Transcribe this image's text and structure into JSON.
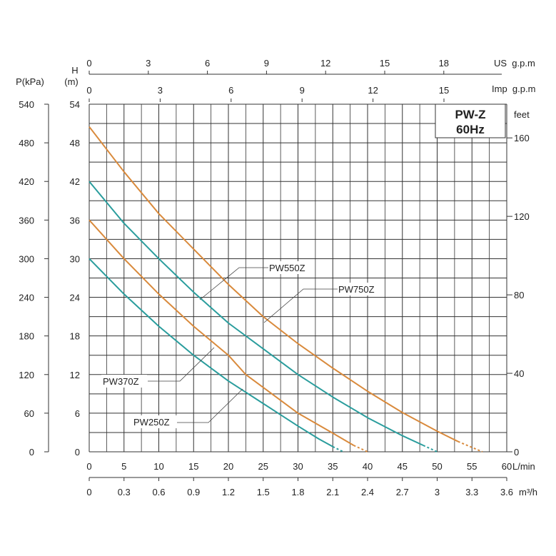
{
  "chart_data": {
    "type": "line",
    "title": "PW-Z",
    "subtitle": "60Hz",
    "xlabel": "L/min",
    "ylabel_h": "H",
    "ylabel_h_unit": "(m)",
    "ylabel_p": "P(kPa)",
    "ylabel_feet": "feet",
    "x_alt1_label": "US  g.p.m",
    "x_alt2_label": "Imp  g.p.m",
    "x_alt3_label": "m³/h",
    "xlim": [
      0,
      60
    ],
    "ylim": [
      0,
      54
    ],
    "grid": true,
    "x_ticks": [
      0,
      5,
      10,
      15,
      20,
      25,
      30,
      35,
      40,
      45,
      50,
      55,
      60
    ],
    "y_ticks": [
      0,
      6,
      12,
      18,
      24,
      30,
      36,
      42,
      48,
      54
    ],
    "p_ticks": [
      0,
      60,
      120,
      180,
      240,
      300,
      360,
      420,
      480,
      540
    ],
    "feet_ticks": [
      0,
      40,
      80,
      120,
      160
    ],
    "us_gpm_ticks": [
      0,
      3,
      6,
      9,
      12,
      15,
      18
    ],
    "imp_gpm_ticks": [
      0,
      3,
      6,
      9,
      12,
      15
    ],
    "m3h_ticks": [
      "0",
      "0.3",
      "0.6",
      "0.9",
      "1.2",
      "1.5",
      "1.8",
      "2.1",
      "2.4",
      "2.7",
      "3",
      "3.3",
      "3.6"
    ],
    "series": [
      {
        "name": "PW750Z",
        "color": "#d98a3c",
        "x": [
          0,
          5,
          10,
          15,
          20,
          25,
          30,
          35,
          40,
          45,
          50,
          53,
          56.5
        ],
        "y": [
          50.5,
          43.5,
          37,
          31.5,
          26,
          21,
          16.8,
          13,
          9.4,
          6.1,
          3.2,
          1.6,
          0
        ]
      },
      {
        "name": "PW550Z",
        "color": "#2a9d9d",
        "x": [
          0,
          5,
          10,
          15,
          20,
          25,
          30,
          35,
          40,
          45,
          48,
          50
        ],
        "y": [
          42,
          35.5,
          30,
          24.8,
          20,
          16,
          12,
          8.5,
          5.3,
          2.5,
          1,
          0
        ]
      },
      {
        "name": "PW370Z",
        "color": "#d98a3c",
        "x": [
          0,
          5,
          10,
          15,
          20,
          22.5,
          25,
          30,
          35,
          38,
          40
        ],
        "y": [
          36,
          30,
          24.5,
          19.5,
          15,
          12,
          10,
          6,
          2.9,
          1,
          0
        ]
      },
      {
        "name": "PW250Z",
        "color": "#2a9d9d",
        "x": [
          0,
          5,
          10,
          15,
          20,
          25,
          30,
          33,
          35,
          36.5
        ],
        "y": [
          30,
          24.5,
          19.5,
          15,
          11,
          7.5,
          4,
          2,
          0.8,
          0
        ]
      }
    ]
  }
}
